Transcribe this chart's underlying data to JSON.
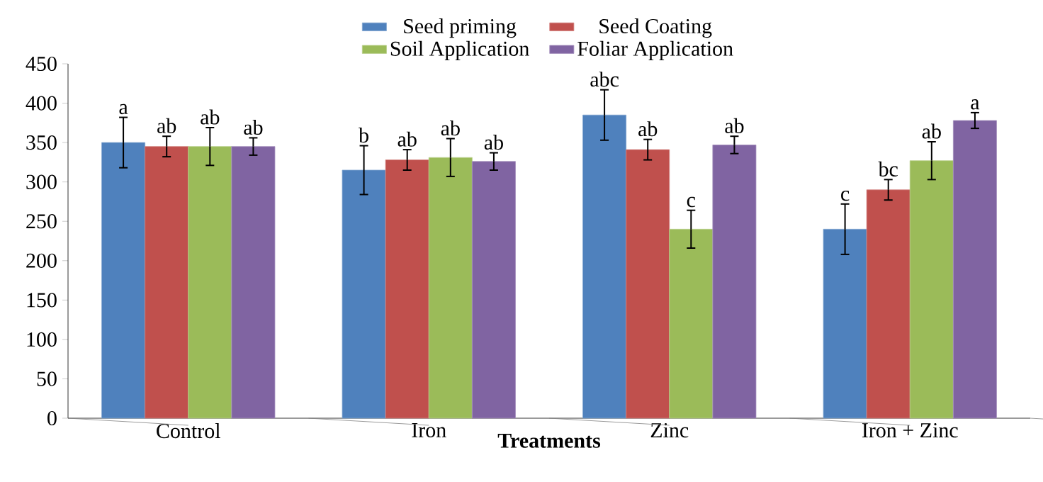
{
  "chart_data": {
    "type": "bar",
    "xlabel": "Treatments",
    "categories": [
      "Control",
      "Iron",
      "Zinc",
      "Iron + Zinc"
    ],
    "series": [
      {
        "name": "Seed priming",
        "color": "#4f81bd",
        "values": [
          350,
          315,
          385,
          240
        ],
        "errors": [
          32,
          31,
          32,
          32
        ],
        "value_labels": [
          "a",
          "b",
          "abc",
          "c"
        ]
      },
      {
        "name": "Seed Coating",
        "color": "#c0504d",
        "values": [
          345,
          328,
          341,
          290
        ],
        "errors": [
          13,
          13,
          13,
          13
        ],
        "value_labels": [
          "ab",
          "ab",
          "ab",
          "bc"
        ]
      },
      {
        "name": "Soil Application",
        "color": "#9bbb59",
        "values": [
          345,
          331,
          240,
          327
        ],
        "errors": [
          24,
          24,
          24,
          24
        ],
        "value_labels": [
          "ab",
          "ab",
          "c",
          "ab"
        ]
      },
      {
        "name": "Foliar Application",
        "color": "#8064a2",
        "values": [
          345,
          326,
          347,
          378
        ],
        "errors": [
          11,
          11,
          11,
          10
        ],
        "value_labels": [
          "ab",
          "ab",
          "ab",
          "a"
        ]
      }
    ],
    "ylim": [
      0,
      450
    ],
    "yticks": [
      0,
      50,
      100,
      150,
      200,
      250,
      300,
      350,
      400,
      450
    ],
    "grid": false,
    "legend": "top"
  }
}
